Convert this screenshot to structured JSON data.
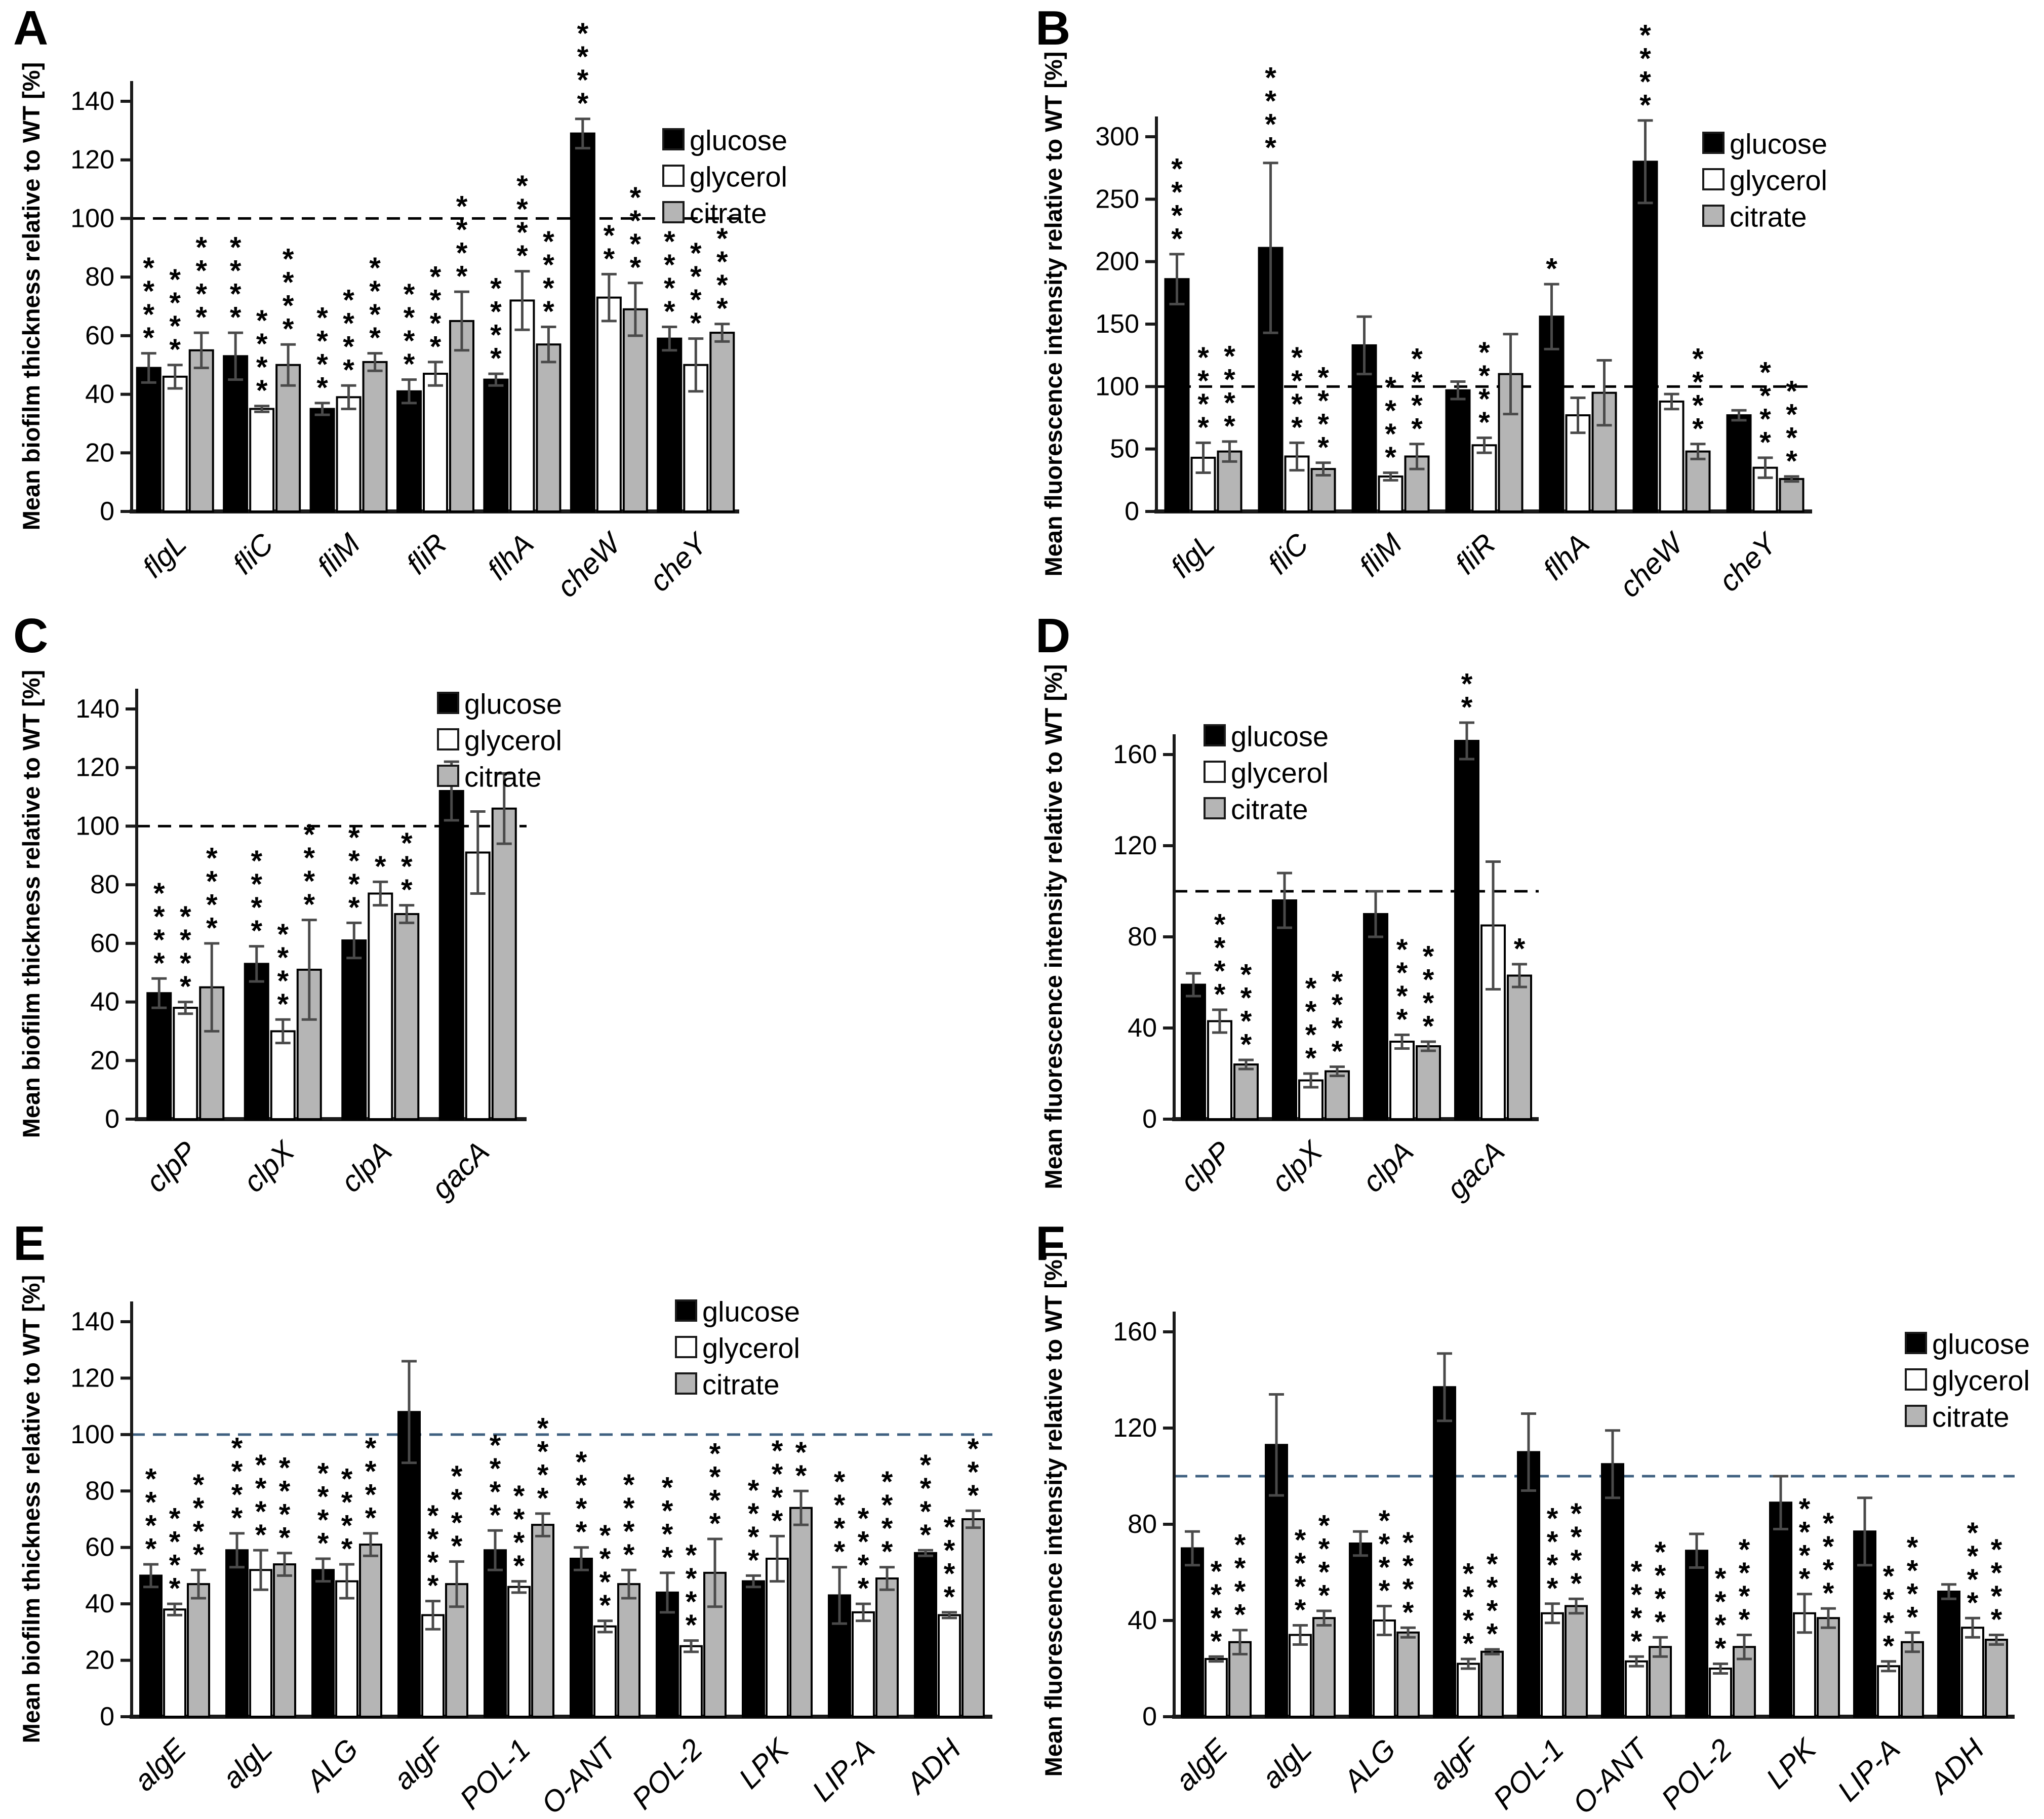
{
  "legend_labels": [
    "glucose",
    "glycerol",
    "citrate"
  ],
  "colors": {
    "glucose": "#000000",
    "glycerol": "#ffffff",
    "citrate": "#b5b5b5",
    "bar_outline": "#000000",
    "error_bar": "#4a4a4a",
    "axis": "#1a1a1a",
    "ref_line_black": "#000000",
    "ref_line_blue": "#3f6080"
  },
  "chart_data": [
    {
      "id": "A",
      "type": "bar",
      "ylabel": "Mean biofilm thickness relative to WT [%]",
      "ylim": [
        0,
        140
      ],
      "ytick_step": 20,
      "reference_line": 100,
      "reference_color": "#000000",
      "legend_position": "top-right",
      "categories": [
        "flgL",
        "fliC",
        "fliM",
        "fliR",
        "flhA",
        "cheW",
        "cheY"
      ],
      "series": [
        {
          "name": "glucose",
          "values": [
            49,
            53,
            35,
            41,
            45,
            129,
            59
          ],
          "errors": [
            5,
            8,
            2,
            4,
            2,
            5,
            4
          ],
          "sig": [
            "****",
            "****",
            "****",
            "****",
            "****",
            "****",
            "****"
          ]
        },
        {
          "name": "glycerol",
          "values": [
            46,
            35,
            39,
            47,
            72,
            73,
            50
          ],
          "errors": [
            4,
            1,
            4,
            4,
            10,
            8,
            9
          ],
          "sig": [
            "****",
            "****",
            "****",
            "****",
            "****",
            "**",
            "****"
          ]
        },
        {
          "name": "citrate",
          "values": [
            55,
            50,
            51,
            65,
            57,
            69,
            61
          ],
          "errors": [
            6,
            7,
            3,
            10,
            6,
            9,
            3
          ],
          "sig": [
            "****",
            "****",
            "****",
            "****",
            "****",
            "****",
            "****"
          ]
        }
      ]
    },
    {
      "id": "B",
      "type": "bar",
      "ylabel": "Mean fluorescence intensity relative to WT [%]",
      "ylim": [
        0,
        300
      ],
      "ytick_step": 50,
      "reference_line": 100,
      "reference_color": "#000000",
      "legend_position": "top-right",
      "categories": [
        "flgL",
        "fliC",
        "fliM",
        "fliR",
        "flhA",
        "cheW",
        "cheY"
      ],
      "series": [
        {
          "name": "glucose",
          "values": [
            186,
            211,
            133,
            97,
            156,
            280,
            77
          ],
          "errors": [
            20,
            68,
            23,
            7,
            26,
            33,
            4
          ],
          "sig": [
            "****",
            "****",
            "",
            "",
            "*",
            "****",
            ""
          ]
        },
        {
          "name": "glycerol",
          "values": [
            43,
            44,
            28,
            53,
            77,
            88,
            35
          ],
          "errors": [
            12,
            11,
            3,
            6,
            14,
            6,
            8
          ],
          "sig": [
            "****",
            "****",
            "****",
            "****",
            "",
            "",
            "****"
          ]
        },
        {
          "name": "citrate",
          "values": [
            48,
            34,
            44,
            110,
            95,
            48,
            26
          ],
          "errors": [
            8,
            5,
            10,
            32,
            26,
            6,
            2
          ],
          "sig": [
            "****",
            "****",
            "****",
            "",
            "",
            "****",
            "****"
          ]
        }
      ]
    },
    {
      "id": "C",
      "type": "bar",
      "ylabel": "Mean biofilm thickness relative to WT [%]",
      "ylim": [
        0,
        140
      ],
      "ytick_step": 20,
      "reference_line": 100,
      "reference_color": "#000000",
      "legend_position": "top-middle",
      "categories": [
        "clpP",
        "clpX",
        "clpA",
        "gacA"
      ],
      "series": [
        {
          "name": "glucose",
          "values": [
            43,
            53,
            61,
            112
          ],
          "errors": [
            5,
            6,
            6,
            10
          ],
          "sig": [
            "****",
            "****",
            "****",
            ""
          ]
        },
        {
          "name": "glycerol",
          "values": [
            38,
            30,
            77,
            91
          ],
          "errors": [
            2,
            4,
            4,
            14
          ],
          "sig": [
            "****",
            "****",
            "*",
            ""
          ]
        },
        {
          "name": "citrate",
          "values": [
            45,
            51,
            70,
            106
          ],
          "errors": [
            15,
            17,
            3,
            12
          ],
          "sig": [
            "****",
            "****",
            "***",
            ""
          ]
        }
      ]
    },
    {
      "id": "D",
      "type": "bar",
      "ylabel": "Mean fluorescence intensity relative to WT [%]",
      "ylim": [
        0,
        160
      ],
      "ytick_step": 40,
      "reference_line": 100,
      "reference_color": "#000000",
      "legend_position": "top-left",
      "categories": [
        "clpP",
        "clpX",
        "clpA",
        "gacA"
      ],
      "series": [
        {
          "name": "glucose",
          "values": [
            59,
            96,
            90,
            166
          ],
          "errors": [
            5,
            12,
            10,
            8
          ],
          "sig": [
            "",
            "",
            "",
            "**"
          ]
        },
        {
          "name": "glycerol",
          "values": [
            43,
            17,
            34,
            85
          ],
          "errors": [
            5,
            3,
            3,
            28
          ],
          "sig": [
            "****",
            "****",
            "****",
            ""
          ]
        },
        {
          "name": "citrate",
          "values": [
            24,
            21,
            32,
            63
          ],
          "errors": [
            2,
            2,
            2,
            5
          ],
          "sig": [
            "****",
            "****",
            "****",
            "*"
          ]
        }
      ]
    },
    {
      "id": "E",
      "type": "bar",
      "ylabel": "Mean biofilm thickness relative to WT [%]",
      "ylim": [
        0,
        140
      ],
      "ytick_step": 20,
      "reference_line": 100,
      "reference_color": "#3f6080",
      "legend_position": "top-right",
      "categories": [
        "algE",
        "algL",
        "ALG",
        "algF",
        "POL-1",
        "O-ANT",
        "POL-2",
        "LPK",
        "LIP-A",
        "ADH"
      ],
      "series": [
        {
          "name": "glucose",
          "values": [
            50,
            59,
            52,
            108,
            59,
            56,
            44,
            48,
            43,
            58
          ],
          "errors": [
            4,
            6,
            4,
            18,
            7,
            4,
            7,
            2,
            10,
            1
          ],
          "sig": [
            "****",
            "****",
            "****",
            "",
            "****",
            "****",
            "****",
            "****",
            "****",
            "****"
          ]
        },
        {
          "name": "glycerol",
          "values": [
            38,
            52,
            48,
            36,
            46,
            32,
            25,
            56,
            37,
            36
          ],
          "errors": [
            2,
            7,
            6,
            5,
            2,
            2,
            2,
            8,
            3,
            1
          ],
          "sig": [
            "****",
            "****",
            "****",
            "****",
            "****",
            "****",
            "****",
            "****",
            "****",
            "****"
          ]
        },
        {
          "name": "citrate",
          "values": [
            47,
            54,
            61,
            47,
            68,
            47,
            51,
            74,
            49,
            70
          ],
          "errors": [
            5,
            4,
            4,
            8,
            4,
            5,
            12,
            6,
            4,
            3
          ],
          "sig": [
            "****",
            "****",
            "****",
            "****",
            "****",
            "****",
            "****",
            "**",
            "****",
            "***"
          ]
        }
      ]
    },
    {
      "id": "F",
      "type": "bar",
      "ylabel": "Mean fluorescence intensity relative to WT [%]",
      "ylim": [
        0,
        160
      ],
      "ytick_step": 40,
      "reference_line": 100,
      "reference_color": "#3f6080",
      "legend_position": "top-right",
      "categories": [
        "algE",
        "algL",
        "ALG",
        "algF",
        "POL-1",
        "O-ANT",
        "POL-2",
        "LPK",
        "LIP-A",
        "ADH"
      ],
      "series": [
        {
          "name": "glucose",
          "values": [
            70,
            113,
            72,
            137,
            110,
            105,
            69,
            89,
            77,
            52
          ],
          "errors": [
            7,
            21,
            5,
            14,
            16,
            14,
            7,
            11,
            14,
            3
          ],
          "sig": [
            "",
            "",
            "",
            "",
            "",
            "",
            "",
            "",
            "",
            ""
          ]
        },
        {
          "name": "glycerol",
          "values": [
            24,
            34,
            40,
            22,
            43,
            23,
            20,
            43,
            21,
            37
          ],
          "errors": [
            1,
            4,
            6,
            2,
            4,
            2,
            2,
            8,
            2,
            4
          ],
          "sig": [
            "****",
            "****",
            "****",
            "****",
            "****",
            "****",
            "****",
            "****",
            "****",
            "****"
          ]
        },
        {
          "name": "citrate",
          "values": [
            31,
            41,
            35,
            27,
            46,
            29,
            29,
            41,
            31,
            32
          ],
          "errors": [
            5,
            3,
            2,
            1,
            3,
            4,
            5,
            4,
            4,
            2
          ],
          "sig": [
            "****",
            "****",
            "****",
            "****",
            "****",
            "****",
            "****",
            "****",
            "****",
            "****"
          ]
        }
      ]
    }
  ]
}
